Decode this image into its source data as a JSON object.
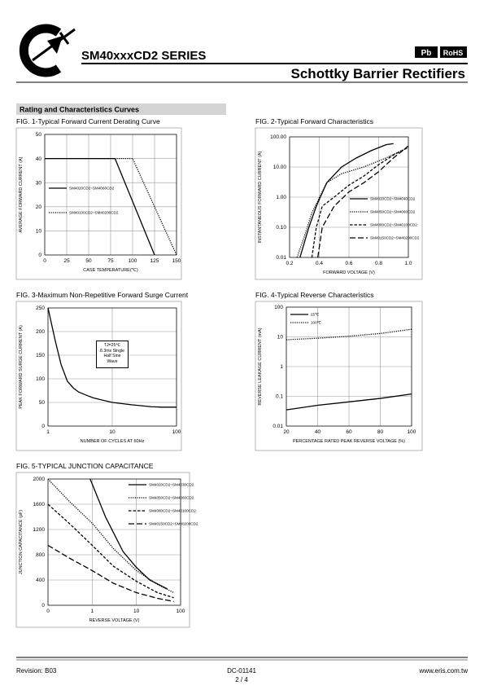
{
  "header": {
    "title": "SM40xxxCD2 SERIES",
    "subtitle": "Schottky Barrier Rectifiers",
    "badges": [
      "Pb",
      "RoHS"
    ],
    "section": "Rating and Characteristics Curves"
  },
  "footer": {
    "revision": "Revision: B03",
    "doc": "DC-01141",
    "page": "2 / 4",
    "website": "www.eris.com.tw"
  },
  "chart_data": [
    {
      "type": "line",
      "title": "FIG. 1-Typical Forward Current Derating Curve",
      "xlabel": "CASE TEMPERATURE(℃)",
      "ylabel": "AVERAGE FORWARD CURRENT (A)",
      "xlim": [
        0,
        150
      ],
      "xticks": [
        0,
        25,
        50,
        75,
        100,
        125,
        150
      ],
      "ylim": [
        0,
        50
      ],
      "yticks": [
        0,
        10,
        20,
        30,
        40,
        50
      ],
      "grid": true,
      "legend": "center-left",
      "series": [
        {
          "name": "SM4020CD2~SM4060CD2",
          "color": "#000000",
          "style": "solid",
          "x": [
            0,
            80,
            125
          ],
          "values": [
            40,
            40,
            0
          ]
        },
        {
          "name": "SM40100CD2~SM40200CD2",
          "color": "#000000",
          "style": "dotted",
          "x": [
            0,
            100,
            150
          ],
          "values": [
            40,
            40,
            0
          ]
        }
      ]
    },
    {
      "type": "line",
      "title": "FIG. 2-Typical Forward Characteristics",
      "xlabel": "FORWARD VOLTAGE (V)",
      "ylabel": "INSTANTANEOUS FORWARD CURRENT (A)",
      "xlim": [
        0.2,
        1
      ],
      "xticks": [
        0.2,
        0.4,
        0.6,
        0.8,
        {
          "value": 1,
          "label": "1.0"
        }
      ],
      "ylim": [
        0.01,
        100
      ],
      "yscale": "log",
      "yticks": [
        0.01,
        {
          "value": 0.1,
          "label": "0.10"
        },
        {
          "value": 1,
          "label": "1.00"
        },
        {
          "value": 10,
          "label": "10.00"
        },
        {
          "value": 100,
          "label": "100.00"
        }
      ],
      "grid": true,
      "legend": "lower-right",
      "series": [
        {
          "name": "SM4020CD2~SM4040CD2",
          "color": "#000000",
          "style": "solid",
          "x": [
            0.27,
            0.33,
            0.38,
            0.45,
            0.55,
            0.65,
            0.75,
            0.85,
            0.9
          ],
          "values": [
            0.01,
            0.1,
            0.5,
            3,
            10,
            20,
            35,
            55,
            60
          ]
        },
        {
          "name": "SM4050CD2~SM4060CD2",
          "color": "#000000",
          "style": "dotted",
          "x": [
            0.25,
            0.3,
            0.35,
            0.45,
            0.55,
            0.7,
            0.85,
            1
          ],
          "values": [
            0.01,
            0.05,
            0.3,
            3,
            6,
            10,
            20,
            45
          ]
        },
        {
          "name": "SM4080CD2~SM40100CD2",
          "color": "#000000",
          "style": "dashed",
          "x": [
            0.35,
            0.38,
            0.42,
            0.5,
            0.6,
            0.7,
            0.8,
            0.9,
            1
          ],
          "values": [
            0.01,
            0.1,
            0.5,
            1,
            2.5,
            5,
            12,
            25,
            45
          ]
        },
        {
          "name": "SM40150CD2~SM40200CD2",
          "color": "#000000",
          "style": "longdash",
          "x": [
            0.39,
            0.42,
            0.5,
            0.6,
            0.7,
            0.8,
            0.9,
            1
          ],
          "values": [
            0.01,
            0.1,
            0.5,
            1.5,
            3,
            7,
            20,
            50
          ]
        }
      ]
    },
    {
      "type": "line",
      "title": "FIG. 3-Maximum Non-Repetitive Forward Surge Current",
      "xlabel": "NUMBER OF CYCLES AT 60Hz",
      "ylabel": "PEAK FORWARD SURGE CURRENT (A)",
      "xlim": [
        1,
        100
      ],
      "xscale": "log",
      "xticks": [
        1,
        10,
        100
      ],
      "ylim": [
        0,
        250
      ],
      "yticks": [
        0,
        50,
        100,
        150,
        200,
        250
      ],
      "grid": true,
      "annotation": "TJ=25℃ 8.3ms Single Half Sine Wave",
      "series": [
        {
          "color": "#000000",
          "style": "solid",
          "x": [
            1,
            1.3,
            1.6,
            2,
            2.5,
            3,
            4,
            5,
            7,
            10,
            20,
            40,
            60,
            100
          ],
          "values": [
            250,
            180,
            130,
            95,
            80,
            72,
            65,
            60,
            55,
            50,
            45,
            41,
            40,
            40
          ]
        }
      ]
    },
    {
      "type": "line",
      "title": "FIG. 4-Typical Reverse Characteristics",
      "xlabel": "PERCENTAGE RATED PEAK REVERSE VOLTAGE (%)",
      "ylabel": "REVERSE LEAKAGE CURRENT (mA)",
      "xlim": [
        20,
        100
      ],
      "xticks": [
        20,
        40,
        60,
        80,
        100
      ],
      "ylim": [
        0.01,
        100
      ],
      "yscale": "log",
      "yticks": [
        0.01,
        0.1,
        1,
        10,
        100
      ],
      "grid": true,
      "legend": "upper-left",
      "series": [
        {
          "name": "25℃",
          "color": "#000000",
          "style": "solid",
          "x": [
            20,
            40,
            60,
            80,
            100
          ],
          "values": [
            0.035,
            0.05,
            0.065,
            0.085,
            0.12
          ]
        },
        {
          "name": "100℃",
          "color": "#000000",
          "style": "dotted",
          "x": [
            20,
            40,
            60,
            80,
            100
          ],
          "values": [
            8,
            9,
            10.5,
            13,
            18
          ]
        }
      ]
    },
    {
      "type": "line",
      "title": "FIG. 5-TYPICAL JUNCTION CAPACITANCE",
      "xlabel": "REVERSE VOLTAGE (V)",
      "ylabel": "JUNCTION CAPACITANCE (pF)",
      "xlim": [
        0.1,
        100
      ],
      "xscale": "log",
      "xticks": [
        {
          "value": 0.1,
          "label": "0"
        },
        1,
        10,
        100
      ],
      "ylim": [
        0,
        2000
      ],
      "yticks": [
        0,
        400,
        800,
        1200,
        1600,
        2000
      ],
      "grid": true,
      "legend": "upper-right",
      "series": [
        {
          "name": "SM4020CD2~SM4030CD2",
          "color": "#000000",
          "style": "solid",
          "x": [
            0.9,
            2,
            5,
            10,
            20,
            50
          ],
          "values": [
            2000,
            1400,
            850,
            600,
            400,
            260
          ]
        },
        {
          "name": "SM4050CD2~SM4060CD2",
          "color": "#000000",
          "style": "dotted",
          "x": [
            0.1,
            0.3,
            1,
            3,
            10,
            30,
            70
          ],
          "values": [
            2000,
            1650,
            1300,
            900,
            550,
            330,
            200
          ]
        },
        {
          "name": "SM4080CD2~SM40100CD2",
          "color": "#000000",
          "style": "dashed",
          "x": [
            0.1,
            0.3,
            1,
            3,
            10,
            30,
            70
          ],
          "values": [
            1600,
            1300,
            950,
            620,
            380,
            200,
            120
          ]
        },
        {
          "name": "SM40150CD2~SM40200CD2",
          "color": "#000000",
          "style": "longdash",
          "x": [
            0.1,
            0.3,
            1,
            3,
            10,
            30,
            70
          ],
          "values": [
            950,
            750,
            550,
            350,
            200,
            110,
            60
          ]
        }
      ]
    }
  ]
}
